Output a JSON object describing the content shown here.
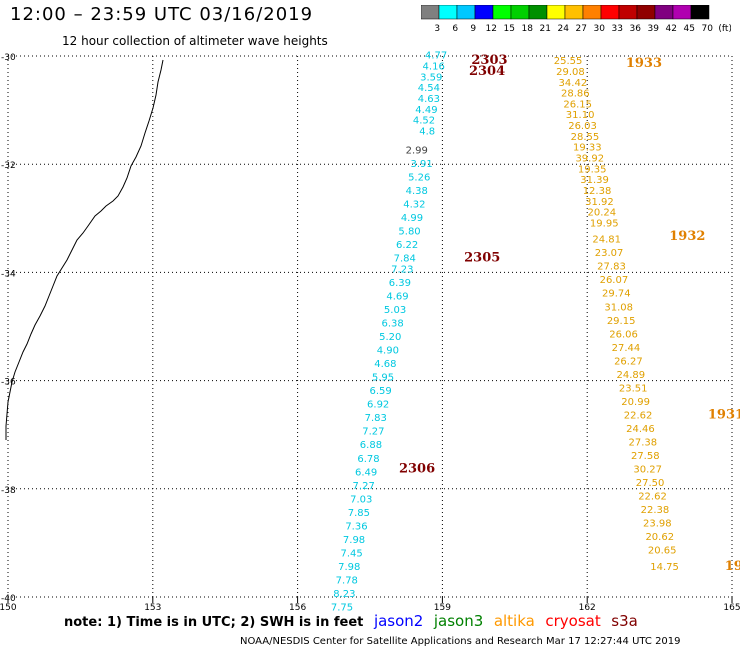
{
  "header": {
    "title": "12:00 – 23:59 UTC 03/16/2019",
    "subtitle": "12 hour collection of altimeter wave heights"
  },
  "colorbar": {
    "colors": [
      "#808080",
      "#00ffff",
      "#00c8ff",
      "#0000ff",
      "#00ff00",
      "#00d000",
      "#009000",
      "#ffff00",
      "#ffc000",
      "#ff8000",
      "#ff0000",
      "#c00000",
      "#900000",
      "#800080",
      "#b000b0",
      "#000000"
    ],
    "labels": [
      "3",
      "6",
      "9",
      "12",
      "15",
      "18",
      "21",
      "24",
      "27",
      "30",
      "33",
      "36",
      "39",
      "42",
      "45",
      "70",
      "(ft)"
    ]
  },
  "map": {
    "lon_min": 150,
    "lon_max": 165,
    "lat_min": -40,
    "lat_max": -30,
    "lon_ticks": [
      "150",
      "153",
      "156",
      "159",
      "162",
      "165"
    ],
    "lat_ticks": [
      "-30",
      "-32",
      "-34",
      "-36",
      "-38",
      "-40"
    ]
  },
  "tracks": [
    {
      "satellite": "jason2",
      "color": "#00c8e0",
      "points": [
        {
          "lon": 159.1,
          "lat": -30.05,
          "v": "4.77"
        },
        {
          "lon": 159.05,
          "lat": -30.25,
          "v": "4.16"
        },
        {
          "lon": 159.0,
          "lat": -30.45,
          "v": "3.59"
        },
        {
          "lon": 158.95,
          "lat": -30.65,
          "v": "4.54"
        },
        {
          "lon": 158.95,
          "lat": -30.85,
          "v": "4.63"
        },
        {
          "lon": 158.9,
          "lat": -31.05,
          "v": "4.49"
        },
        {
          "lon": 158.85,
          "lat": -31.25,
          "v": "4.52"
        },
        {
          "lon": 158.85,
          "lat": -31.45,
          "v": "4.8"
        },
        {
          "lon": 158.8,
          "lat": -32.05,
          "v": "3.91"
        },
        {
          "lon": 158.75,
          "lat": -32.3,
          "v": "5.26"
        },
        {
          "lon": 158.7,
          "lat": -32.55,
          "v": "4.38"
        },
        {
          "lon": 158.65,
          "lat": -32.8,
          "v": "4.32"
        },
        {
          "lon": 158.6,
          "lat": -33.05,
          "v": "4.99"
        },
        {
          "lon": 158.55,
          "lat": -33.3,
          "v": "5.80"
        },
        {
          "lon": 158.5,
          "lat": -33.55,
          "v": "6.22"
        },
        {
          "lon": 158.45,
          "lat": -33.8,
          "v": "7.84"
        },
        {
          "lon": 158.4,
          "lat": -34.0,
          "v": "7.23"
        },
        {
          "lon": 158.35,
          "lat": -34.25,
          "v": "6.39"
        },
        {
          "lon": 158.3,
          "lat": -34.5,
          "v": "4.69"
        },
        {
          "lon": 158.25,
          "lat": -34.75,
          "v": "5.03"
        },
        {
          "lon": 158.2,
          "lat": -35.0,
          "v": "6.38"
        },
        {
          "lon": 158.15,
          "lat": -35.25,
          "v": "5.20"
        },
        {
          "lon": 158.1,
          "lat": -35.5,
          "v": "4.90"
        },
        {
          "lon": 158.05,
          "lat": -35.75,
          "v": "4.68"
        },
        {
          "lon": 158.0,
          "lat": -36.0,
          "v": "5.95"
        },
        {
          "lon": 157.95,
          "lat": -36.25,
          "v": "6.59"
        },
        {
          "lon": 157.9,
          "lat": -36.5,
          "v": "6.92"
        },
        {
          "lon": 157.85,
          "lat": -36.75,
          "v": "7.83"
        },
        {
          "lon": 157.8,
          "lat": -37.0,
          "v": "7.27"
        },
        {
          "lon": 157.75,
          "lat": -37.25,
          "v": "6.88"
        },
        {
          "lon": 157.7,
          "lat": -37.5,
          "v": "6.78"
        },
        {
          "lon": 157.65,
          "lat": -37.75,
          "v": "6.49"
        },
        {
          "lon": 157.6,
          "lat": -38.0,
          "v": "7.27"
        },
        {
          "lon": 157.55,
          "lat": -38.25,
          "v": "7.03"
        },
        {
          "lon": 157.5,
          "lat": -38.5,
          "v": "7.85"
        },
        {
          "lon": 157.45,
          "lat": -38.75,
          "v": "7.36"
        },
        {
          "lon": 157.4,
          "lat": -39.0,
          "v": "7.98"
        },
        {
          "lon": 157.35,
          "lat": -39.25,
          "v": "7.45"
        },
        {
          "lon": 157.3,
          "lat": -39.5,
          "v": "7.98"
        },
        {
          "lon": 157.25,
          "lat": -39.75,
          "v": "7.78"
        },
        {
          "lon": 157.2,
          "lat": -40.0,
          "v": "8.23"
        },
        {
          "lon": 157.15,
          "lat": -40.25,
          "v": "7.75"
        }
      ]
    },
    {
      "satellite": "extra",
      "color": "#404040",
      "points": [
        {
          "lon": 158.7,
          "lat": -31.8,
          "v": "2.99"
        }
      ]
    },
    {
      "satellite": "altika",
      "color": "#e0a000",
      "points": [
        {
          "lon": 161.9,
          "lat": -30.15,
          "v": "25.55"
        },
        {
          "lon": 161.95,
          "lat": -30.35,
          "v": "29.08"
        },
        {
          "lon": 162.0,
          "lat": -30.55,
          "v": "34.42"
        },
        {
          "lon": 162.05,
          "lat": -30.75,
          "v": "28.86"
        },
        {
          "lon": 162.1,
          "lat": -30.95,
          "v": "26.15"
        },
        {
          "lon": 162.15,
          "lat": -31.15,
          "v": "31.10"
        },
        {
          "lon": 162.2,
          "lat": -31.35,
          "v": "26.03"
        },
        {
          "lon": 162.25,
          "lat": -31.55,
          "v": "28.55"
        },
        {
          "lon": 162.3,
          "lat": -31.75,
          "v": "19.33"
        },
        {
          "lon": 162.35,
          "lat": -31.95,
          "v": "39.92"
        },
        {
          "lon": 162.4,
          "lat": -32.15,
          "v": "19.35"
        },
        {
          "lon": 162.45,
          "lat": -32.35,
          "v": "31.39"
        },
        {
          "lon": 162.5,
          "lat": -32.55,
          "v": "12.38"
        },
        {
          "lon": 162.55,
          "lat": -32.75,
          "v": "31.92"
        },
        {
          "lon": 162.6,
          "lat": -32.95,
          "v": "20.24"
        },
        {
          "lon": 162.65,
          "lat": -33.15,
          "v": "19.95"
        },
        {
          "lon": 162.7,
          "lat": -33.45,
          "v": "24.81"
        },
        {
          "lon": 162.75,
          "lat": -33.7,
          "v": "23.07"
        },
        {
          "lon": 162.8,
          "lat": -33.95,
          "v": "27.83"
        },
        {
          "lon": 162.85,
          "lat": -34.2,
          "v": "26.07"
        },
        {
          "lon": 162.9,
          "lat": -34.45,
          "v": "29.74"
        },
        {
          "lon": 162.95,
          "lat": -34.7,
          "v": "31.08"
        },
        {
          "lon": 163.0,
          "lat": -34.95,
          "v": "29.15"
        },
        {
          "lon": 163.05,
          "lat": -35.2,
          "v": "26.06"
        },
        {
          "lon": 163.1,
          "lat": -35.45,
          "v": "27.44"
        },
        {
          "lon": 163.15,
          "lat": -35.7,
          "v": "26.27"
        },
        {
          "lon": 163.2,
          "lat": -35.95,
          "v": "24.89"
        },
        {
          "lon": 163.25,
          "lat": -36.2,
          "v": "23.51"
        },
        {
          "lon": 163.3,
          "lat": -36.45,
          "v": "20.99"
        },
        {
          "lon": 163.35,
          "lat": -36.7,
          "v": "22.62"
        },
        {
          "lon": 163.4,
          "lat": -36.95,
          "v": "24.46"
        },
        {
          "lon": 163.45,
          "lat": -37.2,
          "v": "27.38"
        },
        {
          "lon": 163.5,
          "lat": -37.45,
          "v": "27.58"
        },
        {
          "lon": 163.55,
          "lat": -37.7,
          "v": "30.27"
        },
        {
          "lon": 163.6,
          "lat": -37.95,
          "v": "27.50"
        },
        {
          "lon": 163.65,
          "lat": -38.2,
          "v": "22.62"
        },
        {
          "lon": 163.7,
          "lat": -38.45,
          "v": "22.38"
        },
        {
          "lon": 163.75,
          "lat": -38.7,
          "v": "23.98"
        },
        {
          "lon": 163.8,
          "lat": -38.95,
          "v": "20.62"
        },
        {
          "lon": 163.85,
          "lat": -39.2,
          "v": "20.65"
        },
        {
          "lon": 163.9,
          "lat": -39.5,
          "v": "14.75"
        }
      ]
    }
  ],
  "time_labels": [
    {
      "lon": 159.6,
      "lat": -30.15,
      "t": "2303",
      "color": "#800000"
    },
    {
      "lon": 159.55,
      "lat": -30.35,
      "t": "2304",
      "color": "#800000"
    },
    {
      "lon": 159.45,
      "lat": -33.8,
      "t": "2305",
      "color": "#800000"
    },
    {
      "lon": 158.1,
      "lat": -37.7,
      "t": "2306",
      "color": "#800000"
    },
    {
      "lon": 162.8,
      "lat": -30.2,
      "t": "1933",
      "color": "#e08000"
    },
    {
      "lon": 163.7,
      "lat": -33.4,
      "t": "1932",
      "color": "#e08000"
    },
    {
      "lon": 164.5,
      "lat": -36.7,
      "t": "1931",
      "color": "#e08000"
    },
    {
      "lon": 164.85,
      "lat": -39.5,
      "t": "19",
      "color": "#e08000"
    }
  ],
  "note": {
    "text": "note: 1) Time is in UTC; 2) SWH is in feet",
    "sats": [
      {
        "name": "jason2",
        "color": "#0000ff"
      },
      {
        "name": "jason3",
        "color": "#008000"
      },
      {
        "name": "altika",
        "color": "#ff9900"
      },
      {
        "name": "cryosat",
        "color": "#ff0000"
      },
      {
        "name": "s3a",
        "color": "#800000"
      }
    ]
  },
  "footer": "NOAA/NESDIS Center for Satellite Applications and Research   Mar 17 12:27:44 UTC 2019"
}
